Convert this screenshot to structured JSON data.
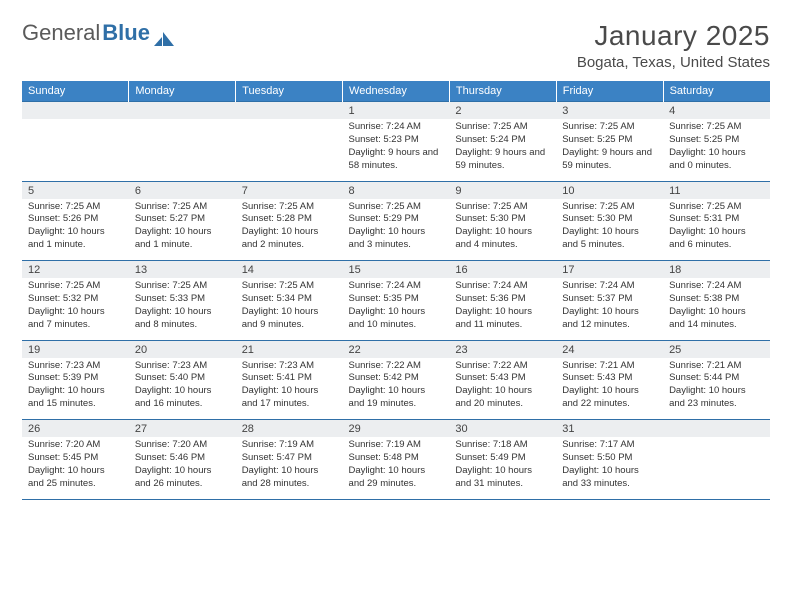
{
  "logo": {
    "text1": "General",
    "text2": "Blue",
    "icon_color": "#2f6fa7"
  },
  "header": {
    "month_title": "January 2025",
    "location": "Bogata, Texas, United States"
  },
  "colors": {
    "header_bg": "#3b82c4",
    "header_text": "#ffffff",
    "daynum_bg": "#eceef0",
    "border": "#2f6fa7",
    "text": "#333333"
  },
  "day_names": [
    "Sunday",
    "Monday",
    "Tuesday",
    "Wednesday",
    "Thursday",
    "Friday",
    "Saturday"
  ],
  "weeks": [
    [
      {
        "n": "",
        "sr": "",
        "ss": "",
        "dl": ""
      },
      {
        "n": "",
        "sr": "",
        "ss": "",
        "dl": ""
      },
      {
        "n": "",
        "sr": "",
        "ss": "",
        "dl": ""
      },
      {
        "n": "1",
        "sr": "Sunrise: 7:24 AM",
        "ss": "Sunset: 5:23 PM",
        "dl": "Daylight: 9 hours and 58 minutes."
      },
      {
        "n": "2",
        "sr": "Sunrise: 7:25 AM",
        "ss": "Sunset: 5:24 PM",
        "dl": "Daylight: 9 hours and 59 minutes."
      },
      {
        "n": "3",
        "sr": "Sunrise: 7:25 AM",
        "ss": "Sunset: 5:25 PM",
        "dl": "Daylight: 9 hours and 59 minutes."
      },
      {
        "n": "4",
        "sr": "Sunrise: 7:25 AM",
        "ss": "Sunset: 5:25 PM",
        "dl": "Daylight: 10 hours and 0 minutes."
      }
    ],
    [
      {
        "n": "5",
        "sr": "Sunrise: 7:25 AM",
        "ss": "Sunset: 5:26 PM",
        "dl": "Daylight: 10 hours and 1 minute."
      },
      {
        "n": "6",
        "sr": "Sunrise: 7:25 AM",
        "ss": "Sunset: 5:27 PM",
        "dl": "Daylight: 10 hours and 1 minute."
      },
      {
        "n": "7",
        "sr": "Sunrise: 7:25 AM",
        "ss": "Sunset: 5:28 PM",
        "dl": "Daylight: 10 hours and 2 minutes."
      },
      {
        "n": "8",
        "sr": "Sunrise: 7:25 AM",
        "ss": "Sunset: 5:29 PM",
        "dl": "Daylight: 10 hours and 3 minutes."
      },
      {
        "n": "9",
        "sr": "Sunrise: 7:25 AM",
        "ss": "Sunset: 5:30 PM",
        "dl": "Daylight: 10 hours and 4 minutes."
      },
      {
        "n": "10",
        "sr": "Sunrise: 7:25 AM",
        "ss": "Sunset: 5:30 PM",
        "dl": "Daylight: 10 hours and 5 minutes."
      },
      {
        "n": "11",
        "sr": "Sunrise: 7:25 AM",
        "ss": "Sunset: 5:31 PM",
        "dl": "Daylight: 10 hours and 6 minutes."
      }
    ],
    [
      {
        "n": "12",
        "sr": "Sunrise: 7:25 AM",
        "ss": "Sunset: 5:32 PM",
        "dl": "Daylight: 10 hours and 7 minutes."
      },
      {
        "n": "13",
        "sr": "Sunrise: 7:25 AM",
        "ss": "Sunset: 5:33 PM",
        "dl": "Daylight: 10 hours and 8 minutes."
      },
      {
        "n": "14",
        "sr": "Sunrise: 7:25 AM",
        "ss": "Sunset: 5:34 PM",
        "dl": "Daylight: 10 hours and 9 minutes."
      },
      {
        "n": "15",
        "sr": "Sunrise: 7:24 AM",
        "ss": "Sunset: 5:35 PM",
        "dl": "Daylight: 10 hours and 10 minutes."
      },
      {
        "n": "16",
        "sr": "Sunrise: 7:24 AM",
        "ss": "Sunset: 5:36 PM",
        "dl": "Daylight: 10 hours and 11 minutes."
      },
      {
        "n": "17",
        "sr": "Sunrise: 7:24 AM",
        "ss": "Sunset: 5:37 PM",
        "dl": "Daylight: 10 hours and 12 minutes."
      },
      {
        "n": "18",
        "sr": "Sunrise: 7:24 AM",
        "ss": "Sunset: 5:38 PM",
        "dl": "Daylight: 10 hours and 14 minutes."
      }
    ],
    [
      {
        "n": "19",
        "sr": "Sunrise: 7:23 AM",
        "ss": "Sunset: 5:39 PM",
        "dl": "Daylight: 10 hours and 15 minutes."
      },
      {
        "n": "20",
        "sr": "Sunrise: 7:23 AM",
        "ss": "Sunset: 5:40 PM",
        "dl": "Daylight: 10 hours and 16 minutes."
      },
      {
        "n": "21",
        "sr": "Sunrise: 7:23 AM",
        "ss": "Sunset: 5:41 PM",
        "dl": "Daylight: 10 hours and 17 minutes."
      },
      {
        "n": "22",
        "sr": "Sunrise: 7:22 AM",
        "ss": "Sunset: 5:42 PM",
        "dl": "Daylight: 10 hours and 19 minutes."
      },
      {
        "n": "23",
        "sr": "Sunrise: 7:22 AM",
        "ss": "Sunset: 5:43 PM",
        "dl": "Daylight: 10 hours and 20 minutes."
      },
      {
        "n": "24",
        "sr": "Sunrise: 7:21 AM",
        "ss": "Sunset: 5:43 PM",
        "dl": "Daylight: 10 hours and 22 minutes."
      },
      {
        "n": "25",
        "sr": "Sunrise: 7:21 AM",
        "ss": "Sunset: 5:44 PM",
        "dl": "Daylight: 10 hours and 23 minutes."
      }
    ],
    [
      {
        "n": "26",
        "sr": "Sunrise: 7:20 AM",
        "ss": "Sunset: 5:45 PM",
        "dl": "Daylight: 10 hours and 25 minutes."
      },
      {
        "n": "27",
        "sr": "Sunrise: 7:20 AM",
        "ss": "Sunset: 5:46 PM",
        "dl": "Daylight: 10 hours and 26 minutes."
      },
      {
        "n": "28",
        "sr": "Sunrise: 7:19 AM",
        "ss": "Sunset: 5:47 PM",
        "dl": "Daylight: 10 hours and 28 minutes."
      },
      {
        "n": "29",
        "sr": "Sunrise: 7:19 AM",
        "ss": "Sunset: 5:48 PM",
        "dl": "Daylight: 10 hours and 29 minutes."
      },
      {
        "n": "30",
        "sr": "Sunrise: 7:18 AM",
        "ss": "Sunset: 5:49 PM",
        "dl": "Daylight: 10 hours and 31 minutes."
      },
      {
        "n": "31",
        "sr": "Sunrise: 7:17 AM",
        "ss": "Sunset: 5:50 PM",
        "dl": "Daylight: 10 hours and 33 minutes."
      },
      {
        "n": "",
        "sr": "",
        "ss": "",
        "dl": ""
      }
    ]
  ]
}
